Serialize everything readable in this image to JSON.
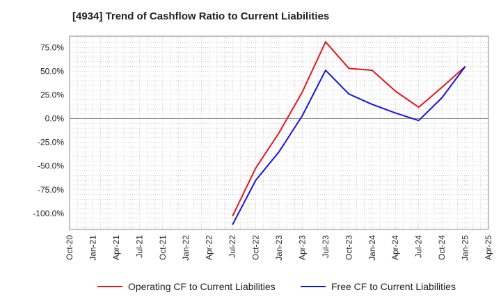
{
  "chart_data": {
    "type": "line",
    "title": "[4934]  Trend of Cashflow Ratio to Current Liabilities",
    "xlabel": "",
    "ylabel": "",
    "x_tick_labels": [
      "Oct-20",
      "Jan-21",
      "Apr-21",
      "Jul-21",
      "Oct-21",
      "Jan-22",
      "Apr-22",
      "Jul-22",
      "Oct-22",
      "Jan-23",
      "Apr-23",
      "Jul-23",
      "Oct-23",
      "Jan-24",
      "Apr-24",
      "Jul-24",
      "Oct-24",
      "Jan-25",
      "Apr-25"
    ],
    "y_tick_labels": [
      "75.0%",
      "50.0%",
      "25.0%",
      "0.0%",
      "-25.0%",
      "-50.0%",
      "-75.0%",
      "-100.0%"
    ],
    "y_ticks": [
      75,
      50,
      25,
      0,
      -25,
      -50,
      -75,
      -100
    ],
    "xlim": [
      "2020-10",
      "2025-04"
    ],
    "ylim": [
      -117,
      87
    ],
    "grid": true,
    "legend_position": "bottom",
    "series": [
      {
        "name": "Operating CF to Current Liabilities",
        "color": "#e8141a",
        "x": [
          "2022-07",
          "2022-10",
          "2023-01",
          "2023-04",
          "2023-07",
          "2023-10",
          "2024-01",
          "2024-04",
          "2024-07",
          "2024-10",
          "2025-01"
        ],
        "y": [
          -103,
          -52,
          -15,
          28,
          81,
          53,
          51,
          29,
          12,
          33,
          55
        ]
      },
      {
        "name": "Free CF to Current Liabilities",
        "color": "#1414e0",
        "x": [
          "2022-07",
          "2022-10",
          "2023-01",
          "2023-04",
          "2023-07",
          "2023-10",
          "2024-01",
          "2024-04",
          "2024-07",
          "2024-10",
          "2025-01"
        ],
        "y": [
          -112,
          -65,
          -35,
          3,
          51,
          26,
          15,
          6,
          -2,
          22,
          55
        ]
      }
    ]
  }
}
